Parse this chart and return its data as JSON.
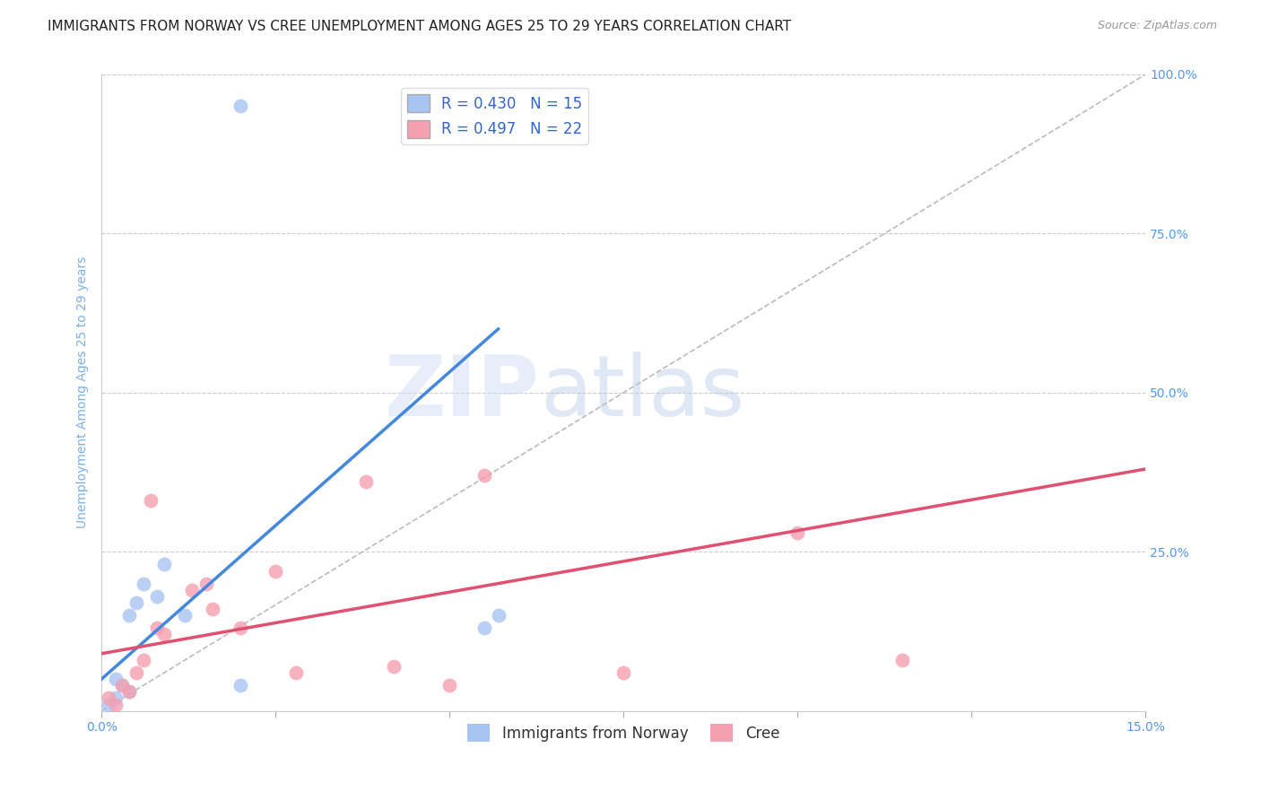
{
  "title": "IMMIGRANTS FROM NORWAY VS CREE UNEMPLOYMENT AMONG AGES 25 TO 29 YEARS CORRELATION CHART",
  "source": "Source: ZipAtlas.com",
  "ylabel": "Unemployment Among Ages 25 to 29 years",
  "xlim": [
    0.0,
    0.15
  ],
  "ylim": [
    0.0,
    1.0
  ],
  "xticks": [
    0.0,
    0.025,
    0.05,
    0.075,
    0.1,
    0.125,
    0.15
  ],
  "yticks": [
    0.0,
    0.25,
    0.5,
    0.75,
    1.0
  ],
  "ytick_labels": [
    "",
    "25.0%",
    "50.0%",
    "75.0%",
    "100.0%"
  ],
  "xtick_labels": [
    "0.0%",
    "",
    "",
    "",
    "",
    "",
    "15.0%"
  ],
  "norway_R": 0.43,
  "norway_N": 15,
  "cree_R": 0.497,
  "cree_N": 22,
  "norway_color": "#a8c4f0",
  "cree_color": "#f4a0b0",
  "norway_scatter_x": [
    0.001,
    0.002,
    0.002,
    0.003,
    0.004,
    0.004,
    0.005,
    0.006,
    0.008,
    0.009,
    0.012,
    0.02,
    0.02,
    0.055,
    0.057
  ],
  "norway_scatter_y": [
    0.01,
    0.02,
    0.05,
    0.04,
    0.03,
    0.15,
    0.17,
    0.2,
    0.18,
    0.23,
    0.15,
    0.04,
    0.95,
    0.13,
    0.15
  ],
  "cree_scatter_x": [
    0.001,
    0.002,
    0.003,
    0.004,
    0.005,
    0.006,
    0.007,
    0.008,
    0.009,
    0.013,
    0.015,
    0.016,
    0.02,
    0.025,
    0.028,
    0.038,
    0.042,
    0.05,
    0.055,
    0.075,
    0.1,
    0.115
  ],
  "cree_scatter_y": [
    0.02,
    0.01,
    0.04,
    0.03,
    0.06,
    0.08,
    0.33,
    0.13,
    0.12,
    0.19,
    0.2,
    0.16,
    0.13,
    0.22,
    0.06,
    0.36,
    0.07,
    0.04,
    0.37,
    0.06,
    0.28,
    0.08
  ],
  "norway_line_x": [
    0.0,
    0.057
  ],
  "norway_line_y": [
    0.05,
    0.6
  ],
  "cree_line_x": [
    0.0,
    0.15
  ],
  "cree_line_y": [
    0.09,
    0.38
  ],
  "watermark_zip": "ZIP",
  "watermark_atlas": "atlas",
  "title_fontsize": 11,
  "axis_label_fontsize": 10,
  "tick_fontsize": 10,
  "legend_fontsize": 12,
  "norway_line_color": "#4488dd",
  "cree_line_color": "#e05070",
  "title_color": "#222222",
  "axis_label_color": "#7ab0e8",
  "tick_color": "#5599ee",
  "legend_text_color": "#3366cc",
  "scatter_size": 130,
  "grid_color": "#cccccc"
}
